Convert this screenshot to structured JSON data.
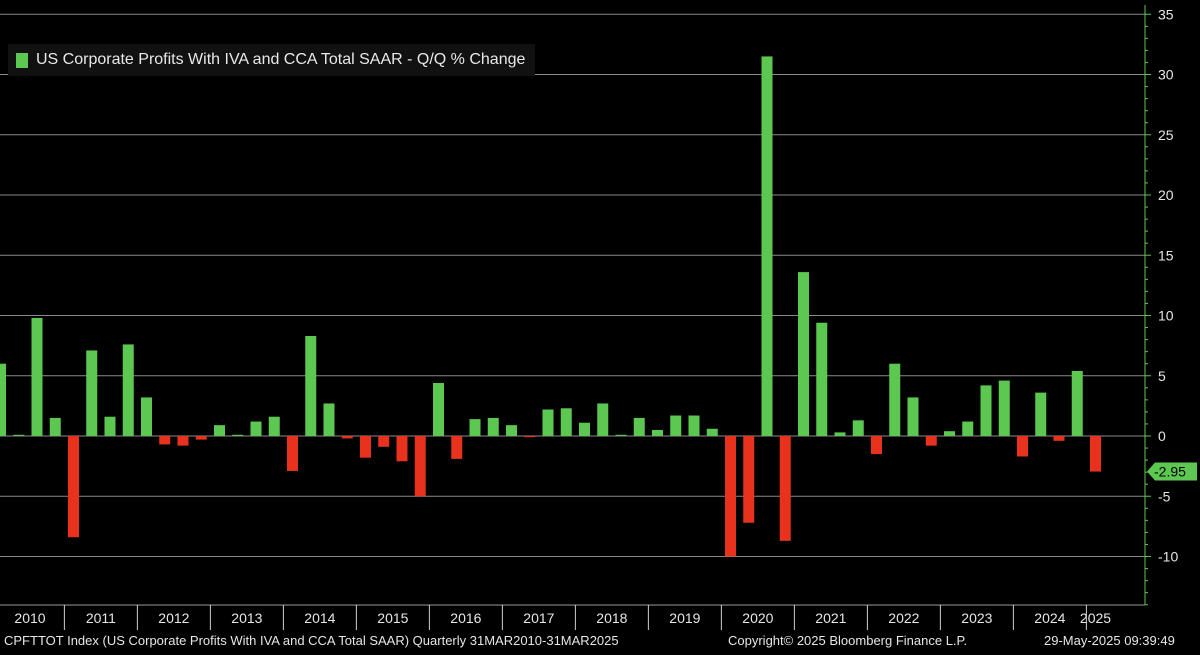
{
  "chart_data": {
    "type": "bar",
    "series": [
      {
        "name": "US Corporate Profits With IVA and CCA Total SAAR - Q/Q % Change",
        "x": [
          "Q1 2010",
          "Q2 2010",
          "Q3 2010",
          "Q4 2010",
          "Q1 2011",
          "Q2 2011",
          "Q3 2011",
          "Q4 2011",
          "Q1 2012",
          "Q2 2012",
          "Q3 2012",
          "Q4 2012",
          "Q1 2013",
          "Q2 2013",
          "Q3 2013",
          "Q4 2013",
          "Q1 2014",
          "Q2 2014",
          "Q3 2014",
          "Q4 2014",
          "Q1 2015",
          "Q2 2015",
          "Q3 2015",
          "Q4 2015",
          "Q1 2016",
          "Q2 2016",
          "Q3 2016",
          "Q4 2016",
          "Q1 2017",
          "Q2 2017",
          "Q3 2017",
          "Q4 2017",
          "Q1 2018",
          "Q2 2018",
          "Q3 2018",
          "Q4 2018",
          "Q1 2019",
          "Q2 2019",
          "Q3 2019",
          "Q4 2019",
          "Q1 2020",
          "Q2 2020",
          "Q3 2020",
          "Q4 2020",
          "Q1 2021",
          "Q2 2021",
          "Q3 2021",
          "Q4 2021",
          "Q1 2022",
          "Q2 2022",
          "Q3 2022",
          "Q4 2022",
          "Q1 2023",
          "Q2 2023",
          "Q3 2023",
          "Q4 2023",
          "Q1 2024",
          "Q2 2024",
          "Q3 2024",
          "Q4 2024",
          "Q1 2025"
        ],
        "values": [
          6.0,
          0.1,
          9.8,
          1.5,
          -8.4,
          7.1,
          1.6,
          7.6,
          3.2,
          -0.7,
          -0.8,
          -0.3,
          0.9,
          0.1,
          1.2,
          1.6,
          -2.9,
          8.3,
          2.7,
          -0.2,
          -1.8,
          -0.9,
          -2.1,
          -5.0,
          4.4,
          -1.9,
          1.4,
          1.5,
          0.9,
          -0.1,
          2.2,
          2.3,
          1.1,
          2.7,
          0.1,
          1.5,
          0.5,
          1.7,
          1.7,
          0.6,
          -10.0,
          -7.2,
          31.5,
          -8.7,
          13.6,
          9.4,
          0.3,
          1.3,
          -1.5,
          6.0,
          3.2,
          -0.8,
          0.4,
          1.2,
          4.2,
          4.6,
          -1.7,
          3.6,
          -0.4,
          5.4,
          -2.95
        ],
        "positive_color": "#5cc751",
        "negative_color": "#e8321e"
      }
    ],
    "ylim": [
      -14,
      35
    ],
    "yticks": [
      -10,
      -5,
      0,
      5,
      10,
      15,
      20,
      25,
      30,
      35
    ],
    "year_labels": [
      "2010",
      "2011",
      "2012",
      "2013",
      "2014",
      "2015",
      "2016",
      "2017",
      "2018",
      "2019",
      "2020",
      "2021",
      "2022",
      "2023",
      "2024",
      "2025"
    ],
    "last_value_label": "-2.95",
    "grid": true,
    "legend_position": "top-left",
    "axis_color": "#5cc751"
  },
  "footer": {
    "left": "CPFTTOT Index (US Corporate Profits With IVA and CCA Total SAAR)  Quarterly 31MAR2010-31MAR2025",
    "center": "Copyright© 2025 Bloomberg Finance L.P.",
    "right": "29-May-2025 09:39:49"
  }
}
